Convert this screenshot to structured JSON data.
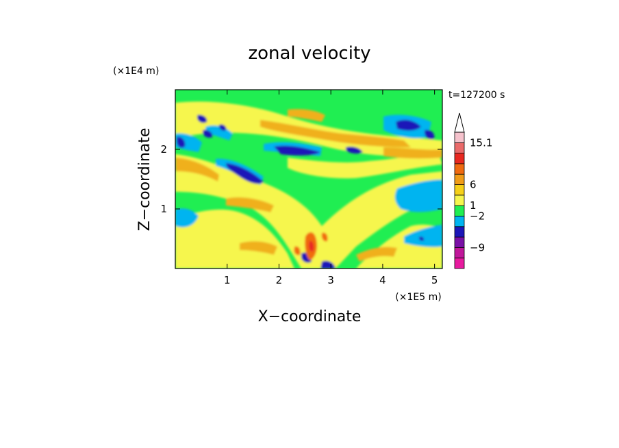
{
  "chart_data": {
    "type": "heatmap",
    "title": "zonal velocity",
    "xlabel": "X−coordinate",
    "ylabel": "Z−coordinate",
    "x_unit": "(×1E5 m)",
    "y_unit": "(×1E4 m)",
    "time_label": "t=127200 s",
    "xlim": [
      0,
      5.15
    ],
    "ylim": [
      0,
      3.0
    ],
    "x_ticks": [
      "1",
      "2",
      "3",
      "4",
      "5"
    ],
    "x_tick_values": [
      1,
      2,
      3,
      4,
      5
    ],
    "y_ticks": [
      "1",
      "2"
    ],
    "y_tick_values": [
      1,
      2
    ],
    "colorbar": {
      "labels": [
        "15.1",
        "6",
        "1",
        "−2",
        "−9"
      ],
      "colors": [
        "#e71a9e",
        "#c0179a",
        "#7a10a6",
        "#1c16b8",
        "#00b4f0",
        "#20ee52",
        "#f6f64e",
        "#f6d018",
        "#f09c18",
        "#f06a10",
        "#e82820",
        "#ea6a6a",
        "#f5c2cc"
      ],
      "arrow_color": "#ffffff"
    }
  }
}
